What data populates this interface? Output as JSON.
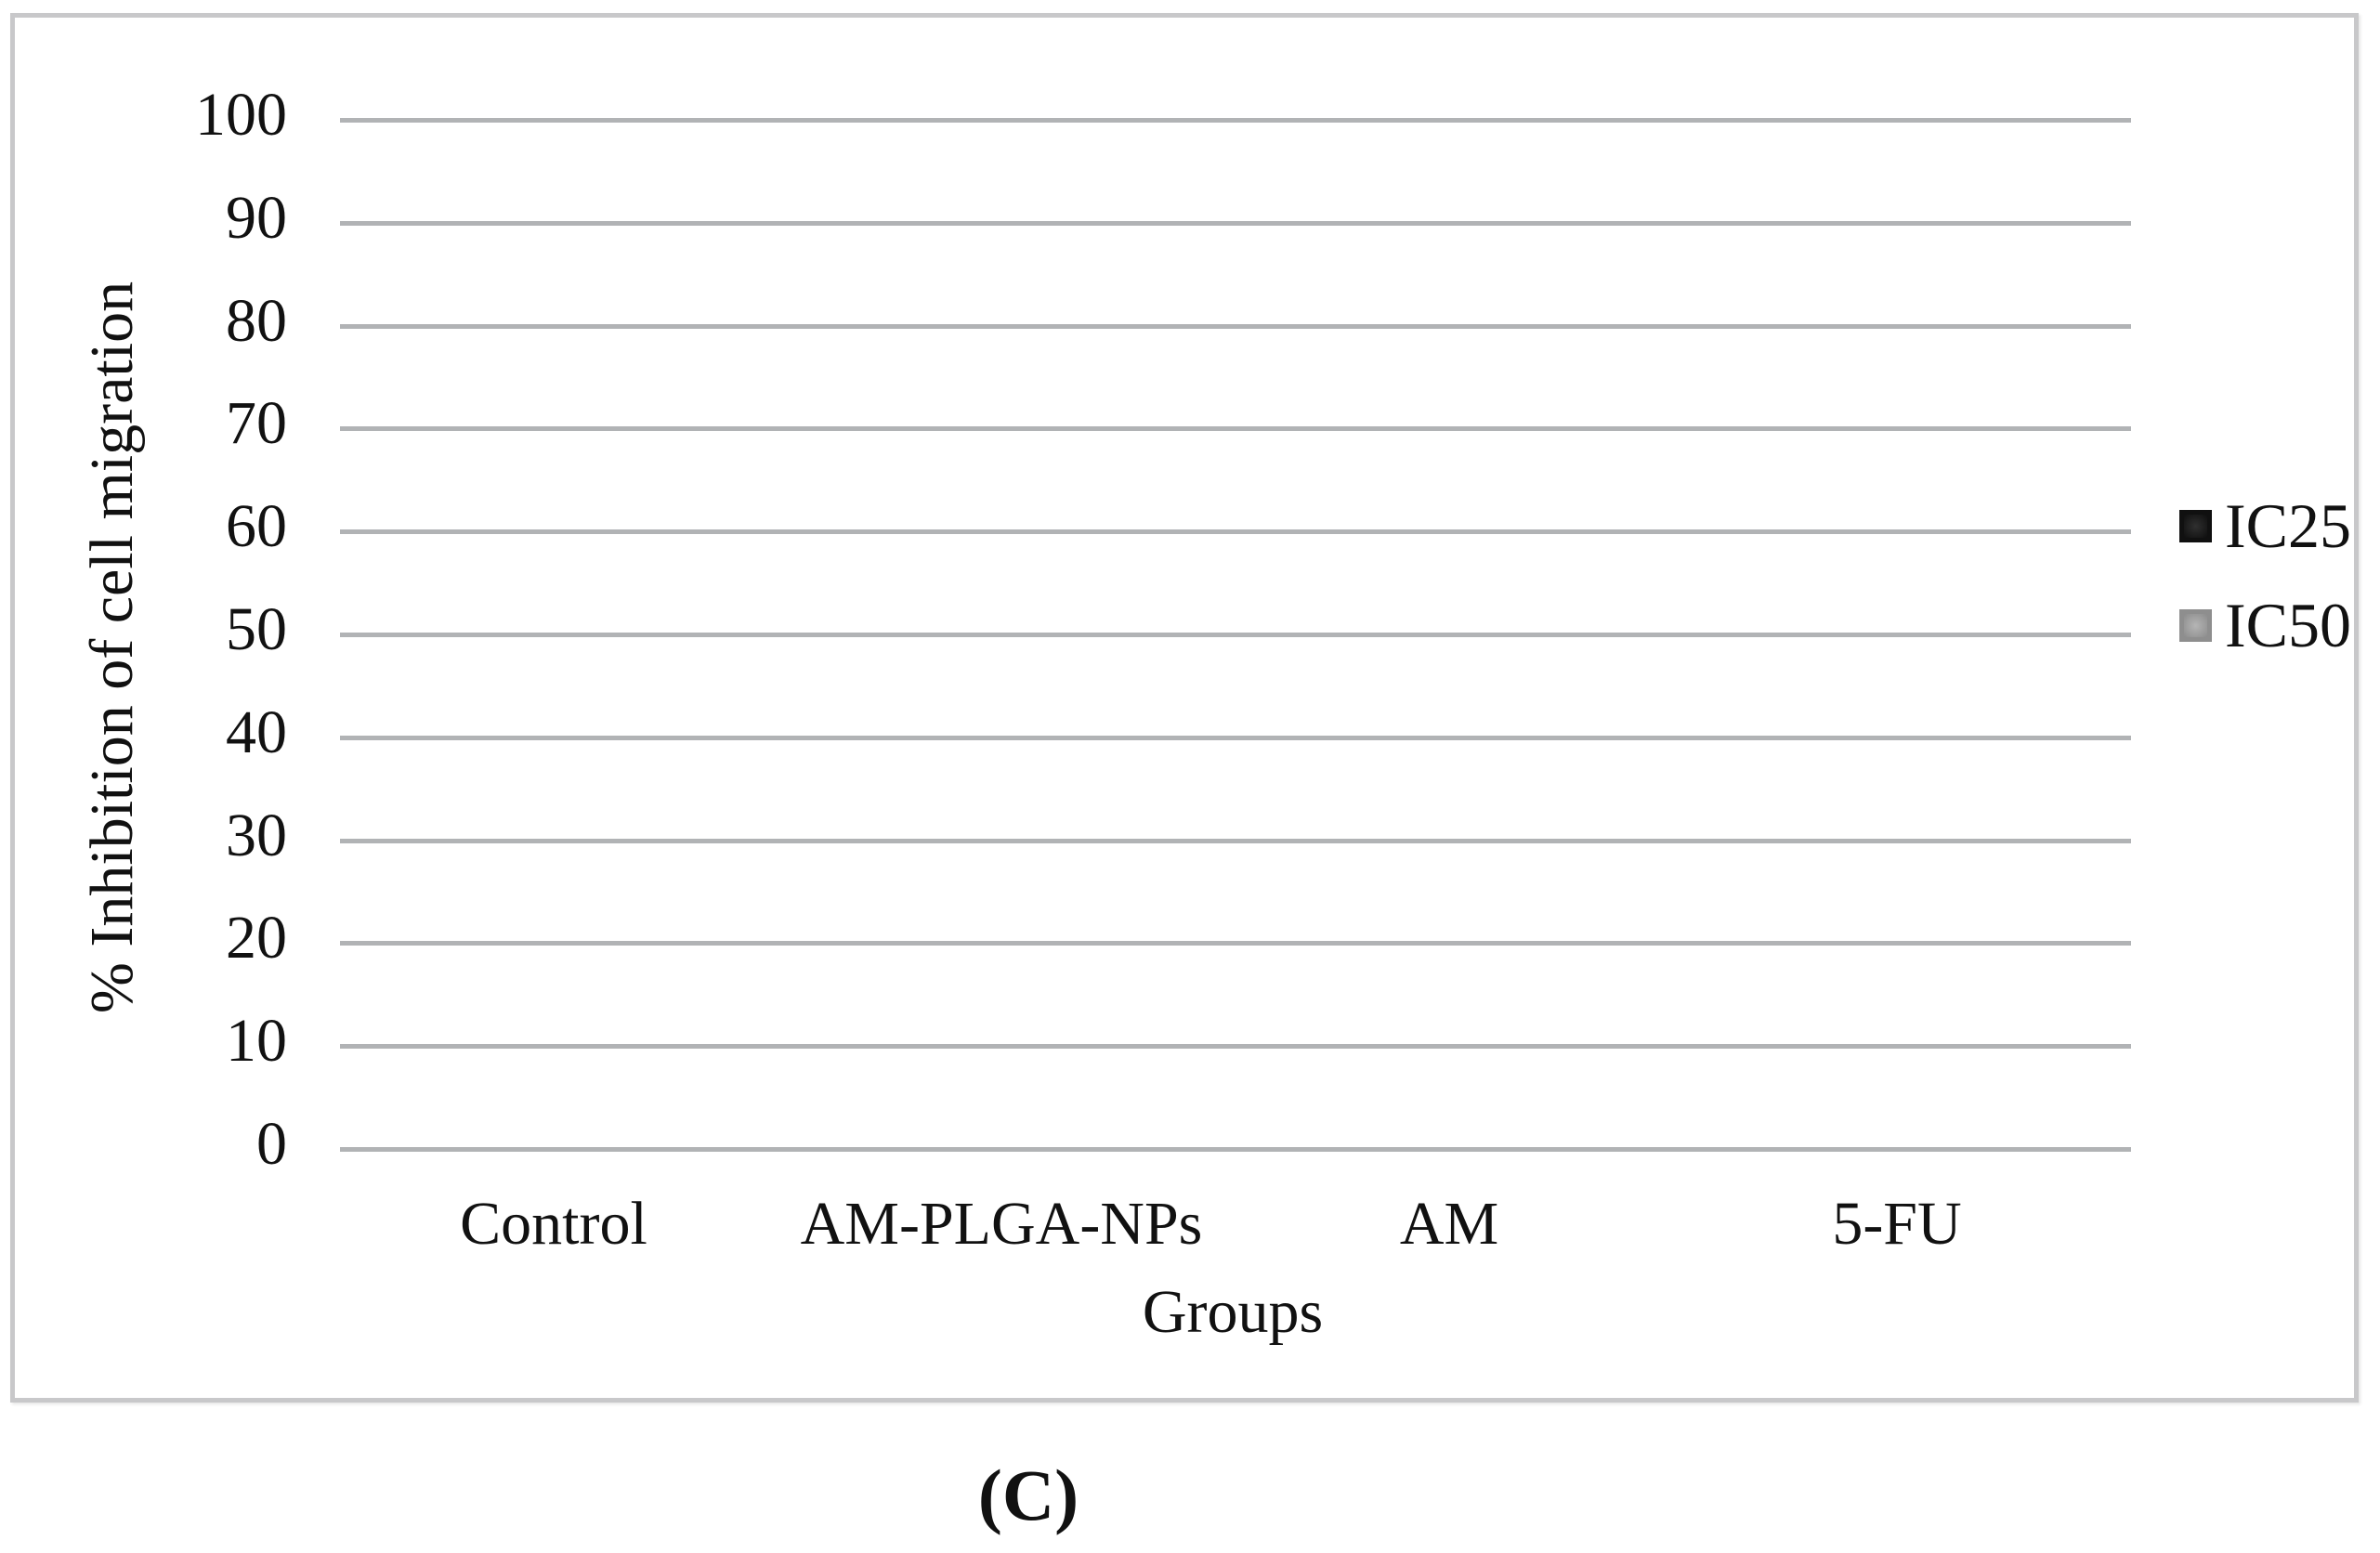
{
  "caption": "(C)",
  "chart_data": {
    "type": "bar",
    "categories": [
      "Control",
      "AM-PLGA-NPs",
      "AM",
      "5-FU"
    ],
    "series": [
      {
        "name": "IC25",
        "values": [
          0,
          0,
          0,
          0
        ],
        "fill": "#303030",
        "border": "#101010"
      },
      {
        "name": "IC50",
        "values": [
          0,
          0,
          0,
          0
        ],
        "fill": "#b5b5b5",
        "border": "#8e8e8e"
      }
    ],
    "title": "",
    "xlabel": "Groups",
    "ylabel": "% Inhibition of cell migration",
    "ylim": [
      0,
      100
    ],
    "yticks": [
      0,
      10,
      20,
      30,
      40,
      50,
      60,
      70,
      80,
      90,
      100
    ],
    "grid": true,
    "legend_position": "right-middle",
    "note": "no bars visible; both series render at 0 for every group"
  },
  "colors": {
    "grid": "#b1b3b5",
    "frame": "#c8c8ca",
    "text": "#111111"
  }
}
